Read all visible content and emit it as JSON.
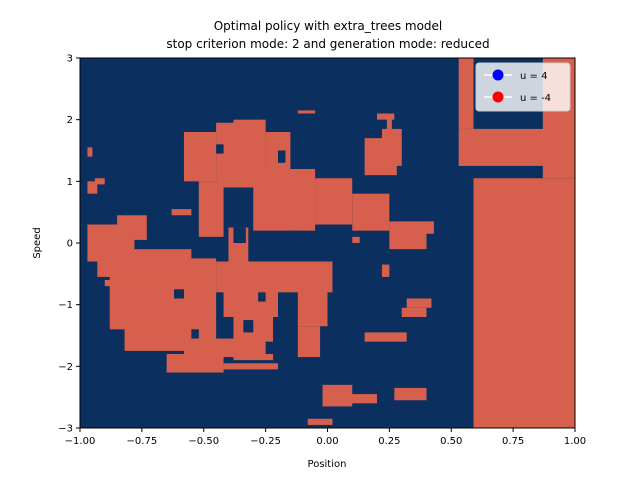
{
  "chart_data": {
    "type": "heatmap",
    "title_line1": "Optimal policy with extra_trees model",
    "title_line2": "stop criterion mode: 2 and generation mode: reduced",
    "xlabel": "Position",
    "ylabel": "Speed",
    "xlim": [
      -1.0,
      1.0
    ],
    "ylim": [
      -3,
      3
    ],
    "x_ticks": [
      -1.0,
      -0.75,
      -0.5,
      -0.25,
      0.0,
      0.25,
      0.5,
      0.75,
      1.0
    ],
    "x_tick_labels": [
      "−1.00",
      "−0.75",
      "−0.50",
      "−0.25",
      "0.00",
      "0.25",
      "0.50",
      "0.75",
      "1.00"
    ],
    "y_ticks": [
      -3,
      -2,
      -1,
      0,
      1,
      2,
      3
    ],
    "y_tick_labels": [
      "−3",
      "−2",
      "−1",
      "0",
      "1",
      "2",
      "3"
    ],
    "background_action": "u = 4",
    "legend": [
      {
        "label": "u = 4",
        "color": "#0000ff",
        "fill_color": "#0b2f5f"
      },
      {
        "label": "u = -4",
        "color": "#ff0000",
        "fill_color": "#d6604d"
      }
    ],
    "legend_position": "top-right",
    "regions_u_minus4": [
      {
        "x0": 0.59,
        "x1": 1.0,
        "y0": -3.0,
        "y1": 1.05
      },
      {
        "x0": 0.87,
        "x1": 1.0,
        "y0": 1.05,
        "y1": 3.0
      },
      {
        "x0": 0.53,
        "x1": 1.0,
        "y0": 1.25,
        "y1": 1.85
      },
      {
        "x0": 0.53,
        "x1": 0.59,
        "y0": 1.85,
        "y1": 3.0
      },
      {
        "x0": -0.58,
        "x1": -0.45,
        "y0": 1.0,
        "y1": 1.8
      },
      {
        "x0": -0.45,
        "x1": -0.25,
        "y0": 0.9,
        "y1": 1.95
      },
      {
        "x0": -0.25,
        "x1": -0.15,
        "y0": 0.6,
        "y1": 1.8
      },
      {
        "x0": -0.3,
        "x1": -0.05,
        "y0": 0.2,
        "y1": 1.2
      },
      {
        "x0": -0.05,
        "x1": 0.1,
        "y0": 0.3,
        "y1": 1.05
      },
      {
        "x0": 0.1,
        "x1": 0.25,
        "y0": 0.2,
        "y1": 0.8
      },
      {
        "x0": 0.15,
        "x1": 0.28,
        "y0": 1.1,
        "y1": 1.7
      },
      {
        "x0": 0.22,
        "x1": 0.3,
        "y0": 1.25,
        "y1": 1.85
      },
      {
        "x0": 0.25,
        "x1": 0.4,
        "y0": -0.1,
        "y1": 0.35
      },
      {
        "x0": 0.28,
        "x1": 0.43,
        "y0": 0.15,
        "y1": 0.35
      },
      {
        "x0": -0.4,
        "x1": -0.32,
        "y0": -0.35,
        "y1": 0.25
      },
      {
        "x0": -0.45,
        "x1": 0.02,
        "y0": -0.8,
        "y1": -0.3
      },
      {
        "x0": -0.42,
        "x1": -0.2,
        "y0": -1.2,
        "y1": -0.75
      },
      {
        "x0": -0.38,
        "x1": -0.22,
        "y0": -1.9,
        "y1": -1.2
      },
      {
        "x0": -0.58,
        "x1": -0.3,
        "y0": -1.85,
        "y1": -1.55
      },
      {
        "x0": -0.65,
        "x1": -0.42,
        "y0": -2.1,
        "y1": -1.8
      },
      {
        "x0": -0.88,
        "x1": -0.45,
        "y0": -1.4,
        "y1": -0.4
      },
      {
        "x0": -0.82,
        "x1": -0.45,
        "y0": -1.75,
        "y1": -1.35
      },
      {
        "x0": -0.93,
        "x1": -0.45,
        "y0": -0.55,
        "y1": -0.25
      },
      {
        "x0": -0.97,
        "x1": -0.78,
        "y0": -0.3,
        "y1": 0.3
      },
      {
        "x0": -0.92,
        "x1": -0.55,
        "y0": -0.3,
        "y1": -0.1
      },
      {
        "x0": -0.85,
        "x1": -0.73,
        "y0": 0.05,
        "y1": 0.45
      },
      {
        "x0": -0.52,
        "x1": -0.42,
        "y0": 0.1,
        "y1": 1.0
      },
      {
        "x0": -0.12,
        "x1": 0.0,
        "y0": -1.35,
        "y1": -0.75
      },
      {
        "x0": -0.12,
        "x1": -0.03,
        "y0": -1.85,
        "y1": -1.35
      },
      {
        "x0": -0.55,
        "x1": -0.47,
        "y0": 1.4,
        "y1": 1.5
      },
      {
        "x0": -0.38,
        "x1": -0.25,
        "y0": 1.9,
        "y1": 2.0
      },
      {
        "x0": -0.42,
        "x1": -0.2,
        "y0": -2.05,
        "y1": -1.95
      },
      {
        "x0": -0.02,
        "x1": 0.1,
        "y0": -2.65,
        "y1": -2.3
      },
      {
        "x0": 0.07,
        "x1": 0.2,
        "y0": -2.6,
        "y1": -2.45
      },
      {
        "x0": 0.27,
        "x1": 0.4,
        "y0": -2.55,
        "y1": -2.35
      },
      {
        "x0": -0.08,
        "x1": 0.02,
        "y0": -2.95,
        "y1": -2.85
      },
      {
        "x0": 0.15,
        "x1": 0.32,
        "y0": -1.6,
        "y1": -1.45
      },
      {
        "x0": 0.3,
        "x1": 0.4,
        "y0": -1.2,
        "y1": -1.05
      },
      {
        "x0": 0.32,
        "x1": 0.42,
        "y0": -1.05,
        "y1": -0.9
      },
      {
        "x0": 0.2,
        "x1": 0.27,
        "y0": 2.0,
        "y1": 2.1
      },
      {
        "x0": 0.24,
        "x1": 0.26,
        "y0": 1.8,
        "y1": 2.05
      },
      {
        "x0": 0.22,
        "x1": 0.25,
        "y0": -0.55,
        "y1": -0.35
      },
      {
        "x0": -0.97,
        "x1": -0.93,
        "y0": 0.8,
        "y1": 1.0
      },
      {
        "x0": -0.94,
        "x1": -0.9,
        "y0": 0.95,
        "y1": 1.05
      },
      {
        "x0": -0.97,
        "x1": -0.95,
        "y0": 1.4,
        "y1": 1.55
      },
      {
        "x0": -0.63,
        "x1": -0.55,
        "y0": 0.45,
        "y1": 0.55
      },
      {
        "x0": -0.9,
        "x1": -0.86,
        "y0": -0.7,
        "y1": -0.6
      },
      {
        "x0": -0.12,
        "x1": -0.05,
        "y0": 2.1,
        "y1": 2.15
      },
      {
        "x0": 0.1,
        "x1": 0.13,
        "y0": 0.0,
        "y1": 0.1
      }
    ],
    "regions_u_plus4_holes": [
      {
        "x0": -0.38,
        "x1": -0.33,
        "y0": 0.0,
        "y1": 0.25
      },
      {
        "x0": -0.15,
        "x1": -0.12,
        "y0": 0.0,
        "y1": 0.2
      },
      {
        "x0": -0.08,
        "x1": -0.05,
        "y0": -0.2,
        "y1": 0.0
      },
      {
        "x0": -0.28,
        "x1": -0.25,
        "y0": -0.95,
        "y1": -0.8
      },
      {
        "x0": -0.34,
        "x1": -0.3,
        "y0": -1.45,
        "y1": -1.25
      },
      {
        "x0": -0.25,
        "x1": -0.22,
        "y0": -1.8,
        "y1": -1.6
      },
      {
        "x0": -0.62,
        "x1": -0.58,
        "y0": -0.9,
        "y1": -0.75
      },
      {
        "x0": -0.55,
        "x1": -0.52,
        "y0": -1.55,
        "y1": -1.4
      },
      {
        "x0": -0.2,
        "x1": -0.17,
        "y0": 1.3,
        "y1": 1.5
      },
      {
        "x0": -0.45,
        "x1": -0.42,
        "y0": 1.45,
        "y1": 1.6
      }
    ]
  }
}
